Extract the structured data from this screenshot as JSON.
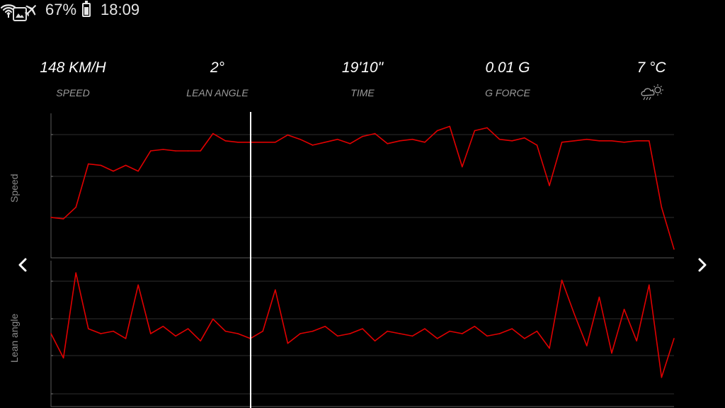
{
  "status_bar": {
    "battery_percent": "67%",
    "time": "18:09",
    "icons": [
      "gallery-icon",
      "wifi-data-icon",
      "airplane-icon",
      "battery-icon"
    ]
  },
  "stats": {
    "speed": {
      "value": "148 KM/H",
      "label": "SPEED"
    },
    "lean_angle": {
      "value": "2°",
      "label": "LEAN ANGLE"
    },
    "time": {
      "value": "19'10\"",
      "label": "TIME"
    },
    "g_force": {
      "value": "0.01 G",
      "label": "G FORCE"
    },
    "temperature": {
      "value": "7 °C",
      "icon": "weather-rain-cloud-sun-icon"
    }
  },
  "charts": {
    "speed_label": "Speed",
    "lean_label": "Lean angle",
    "line_color": "#e00000",
    "cursor_color": "#ffffff"
  },
  "chart_data": [
    {
      "type": "line",
      "name": "speed",
      "ylabel": "Speed",
      "x": [
        0,
        2,
        4,
        6,
        8,
        10,
        12,
        14,
        16,
        18,
        20,
        22,
        24,
        26,
        28,
        30,
        32,
        34,
        36,
        38,
        40,
        42,
        44,
        46,
        48,
        50,
        52,
        54,
        56,
        58,
        60,
        62,
        64,
        66,
        68,
        70,
        72,
        74,
        76,
        78,
        80,
        82,
        84,
        86,
        88,
        90,
        92,
        94,
        96,
        98,
        100
      ],
      "y": [
        28,
        27,
        35,
        65,
        64,
        60,
        64,
        60,
        74,
        75,
        74,
        74,
        74,
        86,
        81,
        80,
        80,
        80,
        80,
        85,
        82,
        78,
        80,
        82,
        79,
        84,
        86,
        79,
        81,
        82,
        80,
        88,
        91,
        63,
        88,
        90,
        82,
        81,
        83,
        78,
        50,
        80,
        81,
        82,
        81,
        81,
        80,
        81,
        81,
        35,
        6
      ]
    },
    {
      "type": "line",
      "name": "lean_angle",
      "ylabel": "Lean angle",
      "x": [
        0,
        2,
        4,
        6,
        8,
        10,
        12,
        14,
        16,
        18,
        20,
        22,
        24,
        26,
        28,
        30,
        32,
        34,
        36,
        38,
        40,
        42,
        44,
        46,
        48,
        50,
        52,
        54,
        56,
        58,
        60,
        62,
        64,
        66,
        68,
        70,
        72,
        74,
        76,
        78,
        80,
        82,
        84,
        86,
        88,
        90,
        92,
        94,
        96,
        98,
        100
      ],
      "y": [
        0,
        -10,
        25,
        2,
        0,
        1,
        -2,
        20,
        0,
        3,
        -1,
        2,
        -3,
        6,
        1,
        0,
        -2,
        1,
        18,
        -4,
        0,
        1,
        3,
        -1,
        0,
        2,
        -3,
        1,
        0,
        -1,
        2,
        -2,
        1,
        0,
        3,
        -1,
        0,
        2,
        -2,
        1,
        -6,
        22,
        8,
        -5,
        15,
        -8,
        10,
        -3,
        20,
        -18,
        -2
      ]
    }
  ]
}
